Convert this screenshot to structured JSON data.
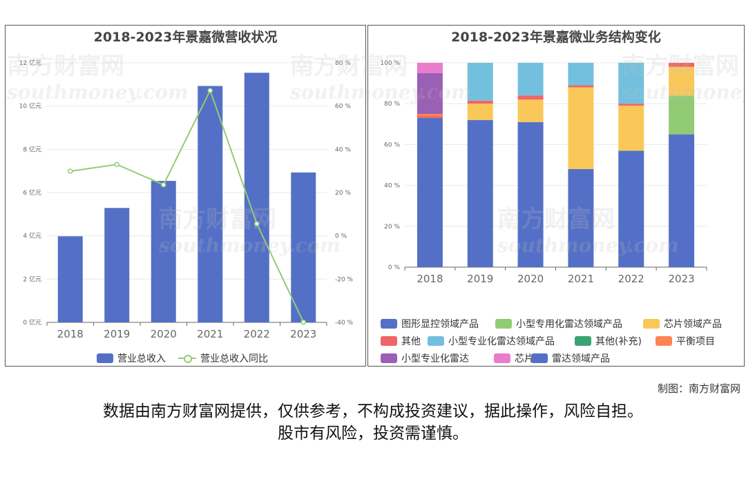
{
  "left_chart": {
    "title": "2018-2023年景嘉微营收状况",
    "legend": [
      {
        "label": "营业总收入",
        "color": "#5470c6"
      },
      {
        "label": "营业总收入同比",
        "color": "#91cc75"
      }
    ]
  },
  "right_chart": {
    "title": "2018-2023年景嘉微业务结构变化",
    "legend": [
      {
        "label": "图形显控领域产品",
        "color": "#5470c6"
      },
      {
        "label": "小型专用化雷达领域产品",
        "color": "#91cc75"
      },
      {
        "label": "芯片领域产品",
        "color": "#fac858"
      },
      {
        "label": "其他",
        "color": "#ee6666"
      },
      {
        "label": "小型专业化雷达领域产品",
        "color": "#73c0de"
      },
      {
        "label": "其他(补充)",
        "color": "#3ba272"
      },
      {
        "label": "平衡项目",
        "color": "#fc8452"
      },
      {
        "label": "小型专业化雷达",
        "color": "#9a60b4"
      },
      {
        "label": "芯片",
        "color": "#ea7ccc"
      },
      {
        "label": "雷达领域产品",
        "color": "#5470c6"
      }
    ]
  },
  "watermark": {
    "text": "南方财富网",
    "sub": "southmoney.com"
  },
  "credit": "制图：南方财富网",
  "disclaimer": {
    "line1": "数据由南方财富网提供，仅供参考，不构成投资建议，据此操作，风险自担。",
    "line2": "股市有风险，投资需谨慎。"
  },
  "chart_data": [
    {
      "type": "bar",
      "title": "2018-2023年景嘉微营收状况",
      "categories": [
        "2018",
        "2019",
        "2020",
        "2021",
        "2022",
        "2023"
      ],
      "y_left": {
        "unit": "亿元",
        "min": 0,
        "max": 12,
        "ticks": [
          "0 亿元",
          "2 亿元",
          "4 亿元",
          "6 亿元",
          "8 亿元",
          "10 亿元",
          "12 亿元"
        ]
      },
      "y_right": {
        "unit": "%",
        "min": -40,
        "max": 80,
        "ticks": [
          "-40 %",
          "-20 %",
          "0 %",
          "20 %",
          "40 %",
          "60 %",
          "80 %"
        ]
      },
      "series": [
        {
          "name": "营业总收入",
          "type": "bar",
          "axis": "left",
          "color": "#5470c6",
          "values": [
            3.98,
            5.29,
            6.54,
            10.93,
            11.54,
            6.93
          ]
        },
        {
          "name": "营业总收入同比",
          "type": "line",
          "axis": "right",
          "color": "#91cc75",
          "values": [
            29.9,
            33.0,
            23.6,
            67.2,
            5.6,
            -39.9
          ]
        }
      ],
      "legend_position": "bottom"
    },
    {
      "type": "bar",
      "stacked": true,
      "title": "2018-2023年景嘉微业务结构变化",
      "categories": [
        "2018",
        "2019",
        "2020",
        "2021",
        "2022",
        "2023"
      ],
      "y": {
        "min": 0,
        "max": 100,
        "ticks": [
          "0 %",
          "20 %",
          "40 %",
          "60 %",
          "80 %",
          "100 %"
        ]
      },
      "series": [
        {
          "name": "图形显控领域产品",
          "color": "#5470c6",
          "values": [
            73,
            72,
            71,
            48,
            57,
            65
          ]
        },
        {
          "name": "小型专用化雷达领域产品",
          "color": "#91cc75",
          "values": [
            0,
            0,
            0,
            0,
            0,
            19
          ]
        },
        {
          "name": "芯片领域产品",
          "color": "#fac858",
          "values": [
            0,
            8,
            11,
            40,
            22,
            14
          ]
        },
        {
          "name": "其他",
          "color": "#ee6666",
          "values": [
            1,
            1.5,
            2,
            1,
            1,
            2
          ]
        },
        {
          "name": "小型专业化雷达领域产品",
          "color": "#73c0de",
          "values": [
            0,
            18.5,
            16,
            11,
            20,
            0
          ]
        },
        {
          "name": "其他(补充)",
          "color": "#3ba272",
          "values": [
            0,
            0,
            0,
            0,
            0,
            0
          ]
        },
        {
          "name": "平衡项目",
          "color": "#fc8452",
          "values": [
            1,
            0,
            0,
            0,
            0,
            0
          ]
        },
        {
          "name": "小型专业化雷达",
          "color": "#9a60b4",
          "values": [
            20,
            0,
            0,
            0,
            0,
            0
          ]
        },
        {
          "name": "芯片",
          "color": "#ea7ccc",
          "values": [
            5,
            0,
            0,
            0,
            0,
            0
          ]
        },
        {
          "name": "雷达领域产品",
          "color": "#5470c6",
          "values": [
            0,
            0,
            0,
            0,
            0,
            0
          ]
        }
      ],
      "legend_position": "bottom"
    }
  ]
}
